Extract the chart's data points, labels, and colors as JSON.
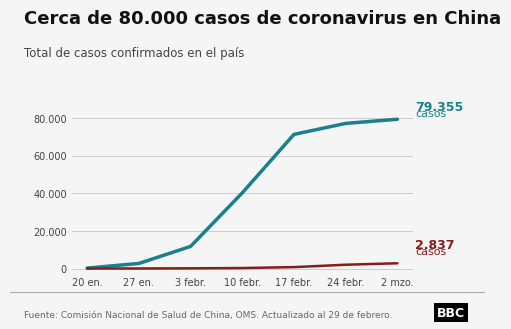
{
  "title": "Cerca de 80.000 casos de coronavirus en China",
  "subtitle": "Total de casos confirmados en el país",
  "footer": "Fuente: Comisión Nacional de Salud de China, OMS. Actualizado al 29 de febrero.",
  "x_labels": [
    "20 en.",
    "27 en.",
    "3 febr.",
    "10 febr.",
    "17 febr.",
    "24 febr.",
    "2 mzo."
  ],
  "china_data": [
    278,
    2744,
    11791,
    40235,
    71329,
    77150,
    79355
  ],
  "world_data": [
    57,
    82,
    153,
    309,
    794,
    2069,
    2837
  ],
  "china_color": "#1a7f8e",
  "world_color": "#8b1a1a",
  "china_label_value": "79.355",
  "china_label_text": "casos",
  "world_label_value": "2.837",
  "world_label_text": "casos",
  "yticks": [
    0,
    20000,
    40000,
    60000,
    80000
  ],
  "ytick_labels": [
    "0",
    "20.000",
    "40.000",
    "60.000",
    "80.000"
  ],
  "ylim": [
    -2000,
    90000
  ],
  "background_color": "#f5f5f5",
  "bbc_logo_color": "#000000",
  "title_fontsize": 13,
  "subtitle_fontsize": 8.5,
  "footer_fontsize": 6.5
}
